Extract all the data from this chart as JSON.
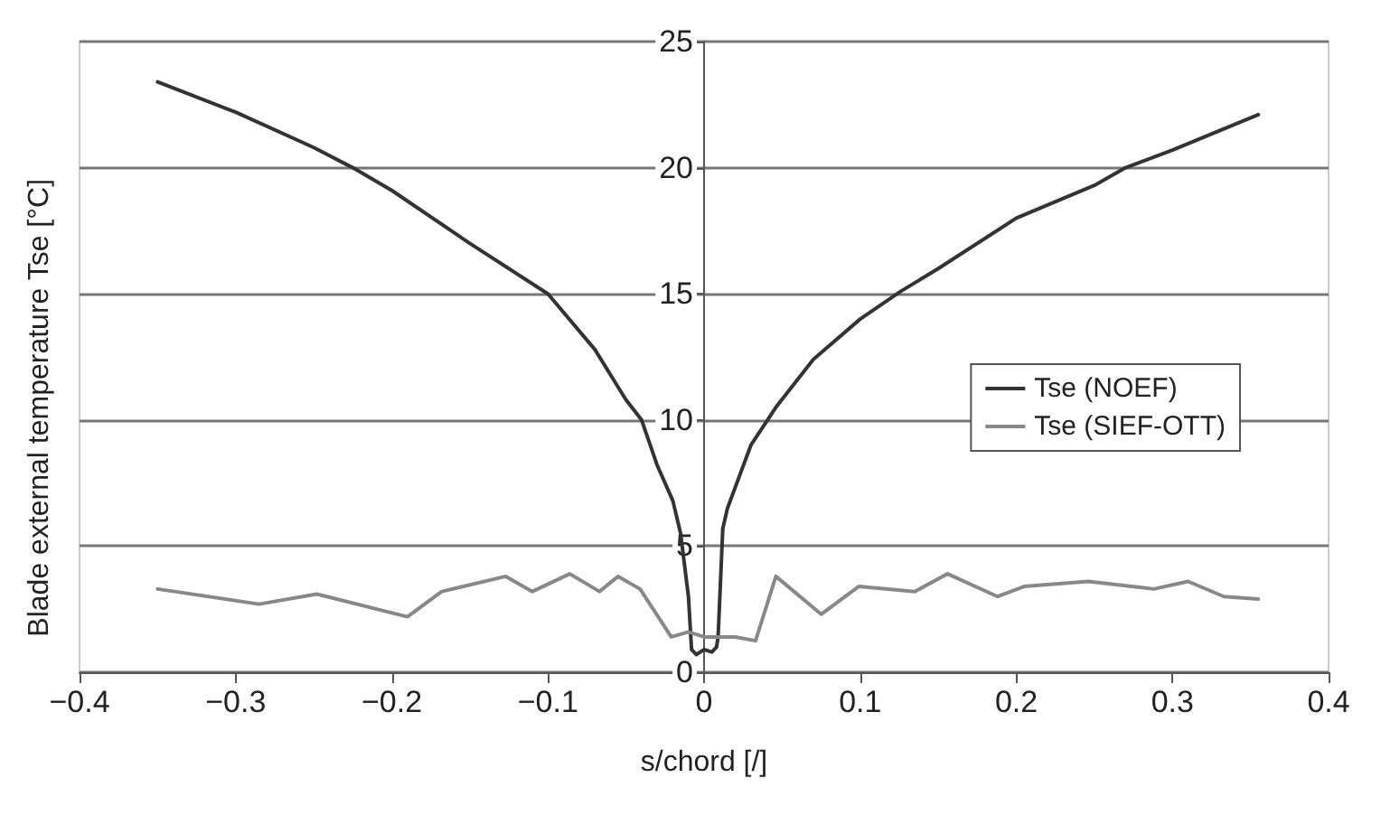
{
  "chart_data": {
    "type": "line",
    "xlabel": "s/chord [/]",
    "ylabel": "Blade external temperature Tse [°C]",
    "xlim": [
      -0.4,
      0.4
    ],
    "xticks": [
      -0.4,
      -0.3,
      -0.2,
      -0.1,
      0,
      0.1,
      0.2,
      0.3,
      0.4
    ],
    "ylim": [
      0,
      25
    ],
    "yticks": [
      0,
      5,
      10,
      15,
      20,
      25
    ],
    "grid": "y",
    "legend": "right",
    "marker": "none",
    "line_style": "solid",
    "series": [
      {
        "name": "Tse (NOEF)",
        "color": "#333333",
        "x": [
          -0.35,
          -0.3,
          -0.25,
          -0.225,
          -0.2,
          -0.15,
          -0.1,
          -0.07,
          -0.05,
          -0.04,
          -0.03,
          -0.02,
          -0.015,
          -0.01,
          -0.008,
          -0.005,
          0,
          0.005,
          0.008,
          0.009,
          0.012,
          0.015,
          0.024,
          0.03,
          0.046,
          0.07,
          0.1,
          0.126,
          0.15,
          0.2,
          0.25,
          0.27,
          0.3,
          0.355
        ],
        "values": [
          23.4,
          22.2,
          20.8,
          20,
          19.1,
          17.0,
          15.0,
          12.8,
          10.8,
          10.0,
          8.2,
          6.8,
          5.5,
          3.0,
          0.9,
          0.7,
          0.9,
          0.8,
          1.0,
          1.4,
          5.7,
          6.5,
          8.0,
          9.0,
          10.5,
          12.4,
          14.0,
          15.1,
          16.0,
          18.0,
          19.3,
          20.0,
          20.7,
          22.1
        ]
      },
      {
        "name": "Tse (SIEF-OTT)",
        "color": "#888888",
        "x": [
          -0.35,
          -0.285,
          -0.248,
          -0.19,
          -0.168,
          -0.127,
          -0.11,
          -0.086,
          -0.067,
          -0.055,
          -0.041,
          -0.021,
          -0.01,
          0,
          0.02,
          0.033,
          0.046,
          0.075,
          0.099,
          0.135,
          0.156,
          0.188,
          0.205,
          0.246,
          0.288,
          0.31,
          0.333,
          0.355
        ],
        "values": [
          3.3,
          2.7,
          3.1,
          2.2,
          3.2,
          3.8,
          3.2,
          3.9,
          3.2,
          3.8,
          3.3,
          1.4,
          1.6,
          1.4,
          1.4,
          1.25,
          3.8,
          2.3,
          3.4,
          3.2,
          3.9,
          3.0,
          3.4,
          3.6,
          3.3,
          3.6,
          3.0,
          2.9
        ]
      }
    ]
  }
}
